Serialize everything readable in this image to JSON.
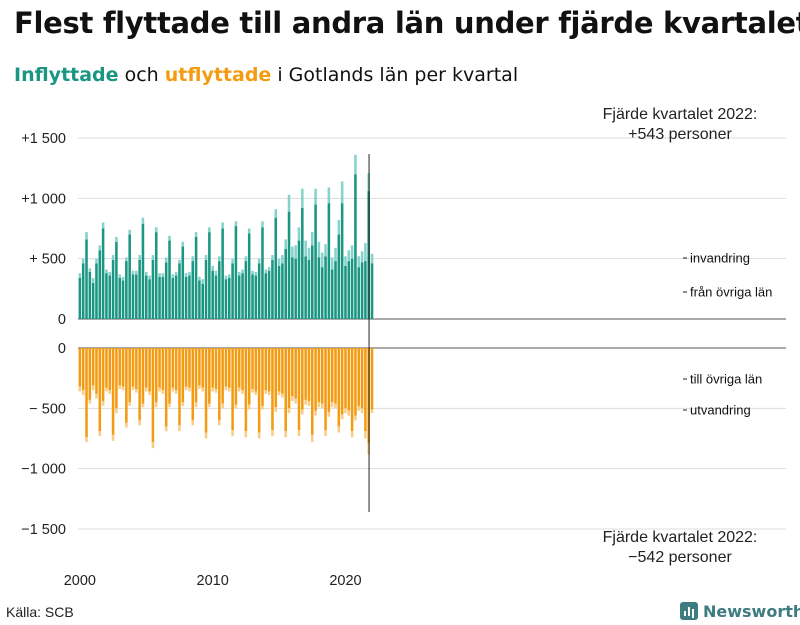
{
  "title": "Flest flyttade till andra län under fjärde kvartalet",
  "subtitle": {
    "part1": "Inflyttade",
    "part2": " och ",
    "part3": "utflyttade",
    "part4": " i Gotlands län per kvartal"
  },
  "source": "Källa: SCB",
  "brand": "Newsworthy",
  "colors": {
    "in_dark": "#1b9683",
    "in_light": "#86d3cb",
    "out_dark": "#f39c12",
    "out_light": "#f8cd8a",
    "grid": "#dddddd"
  },
  "chart_data": {
    "type": "bar",
    "stacked": true,
    "x_start": "2000Q1",
    "x_end": "2022Q4",
    "x_tick_labels": [
      "2000",
      "2010",
      "2020"
    ],
    "top_panel": {
      "ylim": [
        0,
        1500
      ],
      "y_tick_labels": [
        "+1 500",
        "+1 000",
        "+  500",
        "0"
      ],
      "y_tick_values": [
        1500,
        1000,
        500,
        0
      ],
      "series": [
        {
          "name": "från övriga län",
          "values": [
            340,
            460,
            660,
            390,
            300,
            460,
            570,
            750,
            380,
            360,
            490,
            640,
            340,
            320,
            480,
            700,
            370,
            370,
            490,
            790,
            360,
            330,
            490,
            720,
            350,
            350,
            470,
            650,
            340,
            360,
            460,
            600,
            350,
            360,
            480,
            680,
            320,
            290,
            490,
            720,
            400,
            360,
            480,
            750,
            330,
            340,
            460,
            770,
            360,
            380,
            480,
            710,
            370,
            360,
            460,
            760,
            380,
            400,
            490,
            840,
            440,
            460,
            580,
            890,
            510,
            500,
            650,
            920,
            520,
            490,
            610,
            950,
            510,
            430,
            520,
            960,
            410,
            480,
            700,
            960,
            440,
            480,
            500,
            1200,
            430,
            470,
            480,
            1060,
            460
          ]
        },
        {
          "name": "invandring",
          "values": [
            40,
            40,
            60,
            30,
            40,
            40,
            40,
            50,
            30,
            30,
            40,
            40,
            30,
            30,
            30,
            40,
            30,
            30,
            40,
            50,
            30,
            30,
            40,
            40,
            30,
            30,
            40,
            40,
            30,
            30,
            30,
            40,
            30,
            30,
            40,
            40,
            30,
            40,
            40,
            40,
            40,
            40,
            40,
            50,
            30,
            30,
            40,
            40,
            30,
            30,
            40,
            40,
            30,
            30,
            40,
            50,
            30,
            30,
            40,
            70,
            60,
            70,
            80,
            140,
            90,
            110,
            110,
            160,
            130,
            100,
            110,
            130,
            130,
            120,
            100,
            130,
            100,
            110,
            120,
            180,
            80,
            90,
            110,
            160,
            90,
            90,
            150,
            150,
            80
          ]
        }
      ],
      "annotation": "Fjärde kvartalet 2022:\n+543 personer",
      "annotation_lines": [
        "Fjärde kvartalet 2022:",
        "+543 personer"
      ]
    },
    "bottom_panel": {
      "ylim": [
        -1500,
        0
      ],
      "y_tick_labels": [
        "0",
        "−  500",
        "−1 000",
        "−1 500"
      ],
      "y_tick_values": [
        0,
        -500,
        -1000,
        -1500
      ],
      "series": [
        {
          "name": "till övriga län",
          "values": [
            -320,
            -350,
            -740,
            -430,
            -310,
            -380,
            -690,
            -440,
            -330,
            -350,
            -720,
            -500,
            -310,
            -320,
            -620,
            -450,
            -320,
            -340,
            -600,
            -460,
            -330,
            -360,
            -780,
            -450,
            -330,
            -350,
            -650,
            -460,
            -330,
            -350,
            -640,
            -450,
            -320,
            -330,
            -600,
            -450,
            -310,
            -330,
            -700,
            -460,
            -330,
            -340,
            -600,
            -460,
            -320,
            -330,
            -680,
            -470,
            -330,
            -350,
            -690,
            -470,
            -340,
            -360,
            -700,
            -480,
            -350,
            -360,
            -680,
            -490,
            -360,
            -380,
            -690,
            -500,
            -400,
            -420,
            -680,
            -510,
            -430,
            -440,
            -720,
            -520,
            -450,
            -460,
            -680,
            -530,
            -450,
            -460,
            -650,
            -550,
            -500,
            -520,
            -690,
            -560,
            -480,
            -500,
            -690,
            -790,
            -510
          ]
        },
        {
          "name": "utvandring",
          "values": [
            -40,
            -40,
            -40,
            -30,
            -40,
            -40,
            -40,
            -40,
            -30,
            -30,
            -50,
            -40,
            -30,
            -30,
            -40,
            -30,
            -30,
            -30,
            -40,
            -30,
            -30,
            -30,
            -50,
            -40,
            -30,
            -30,
            -40,
            -30,
            -30,
            -30,
            -50,
            -30,
            -30,
            -30,
            -40,
            -40,
            -30,
            -30,
            -50,
            -30,
            -30,
            -30,
            -40,
            -40,
            -30,
            -30,
            -50,
            -30,
            -30,
            -30,
            -50,
            -40,
            -30,
            -30,
            -50,
            -30,
            -30,
            -30,
            -50,
            -40,
            -30,
            -30,
            -50,
            -40,
            -40,
            -40,
            -50,
            -40,
            -40,
            -40,
            -60,
            -40,
            -40,
            -40,
            -50,
            -40,
            -40,
            -40,
            -50,
            -40,
            -40,
            -40,
            -50,
            -40,
            -40,
            -40,
            -60,
            -90,
            -30
          ]
        }
      ],
      "annotation": "Fjärde kvartalet 2022:\n−542 personer",
      "annotation_lines": [
        "Fjärde kvartalet 2022:",
        "−542 personer"
      ]
    },
    "legend": "inline labels at right end of series"
  }
}
